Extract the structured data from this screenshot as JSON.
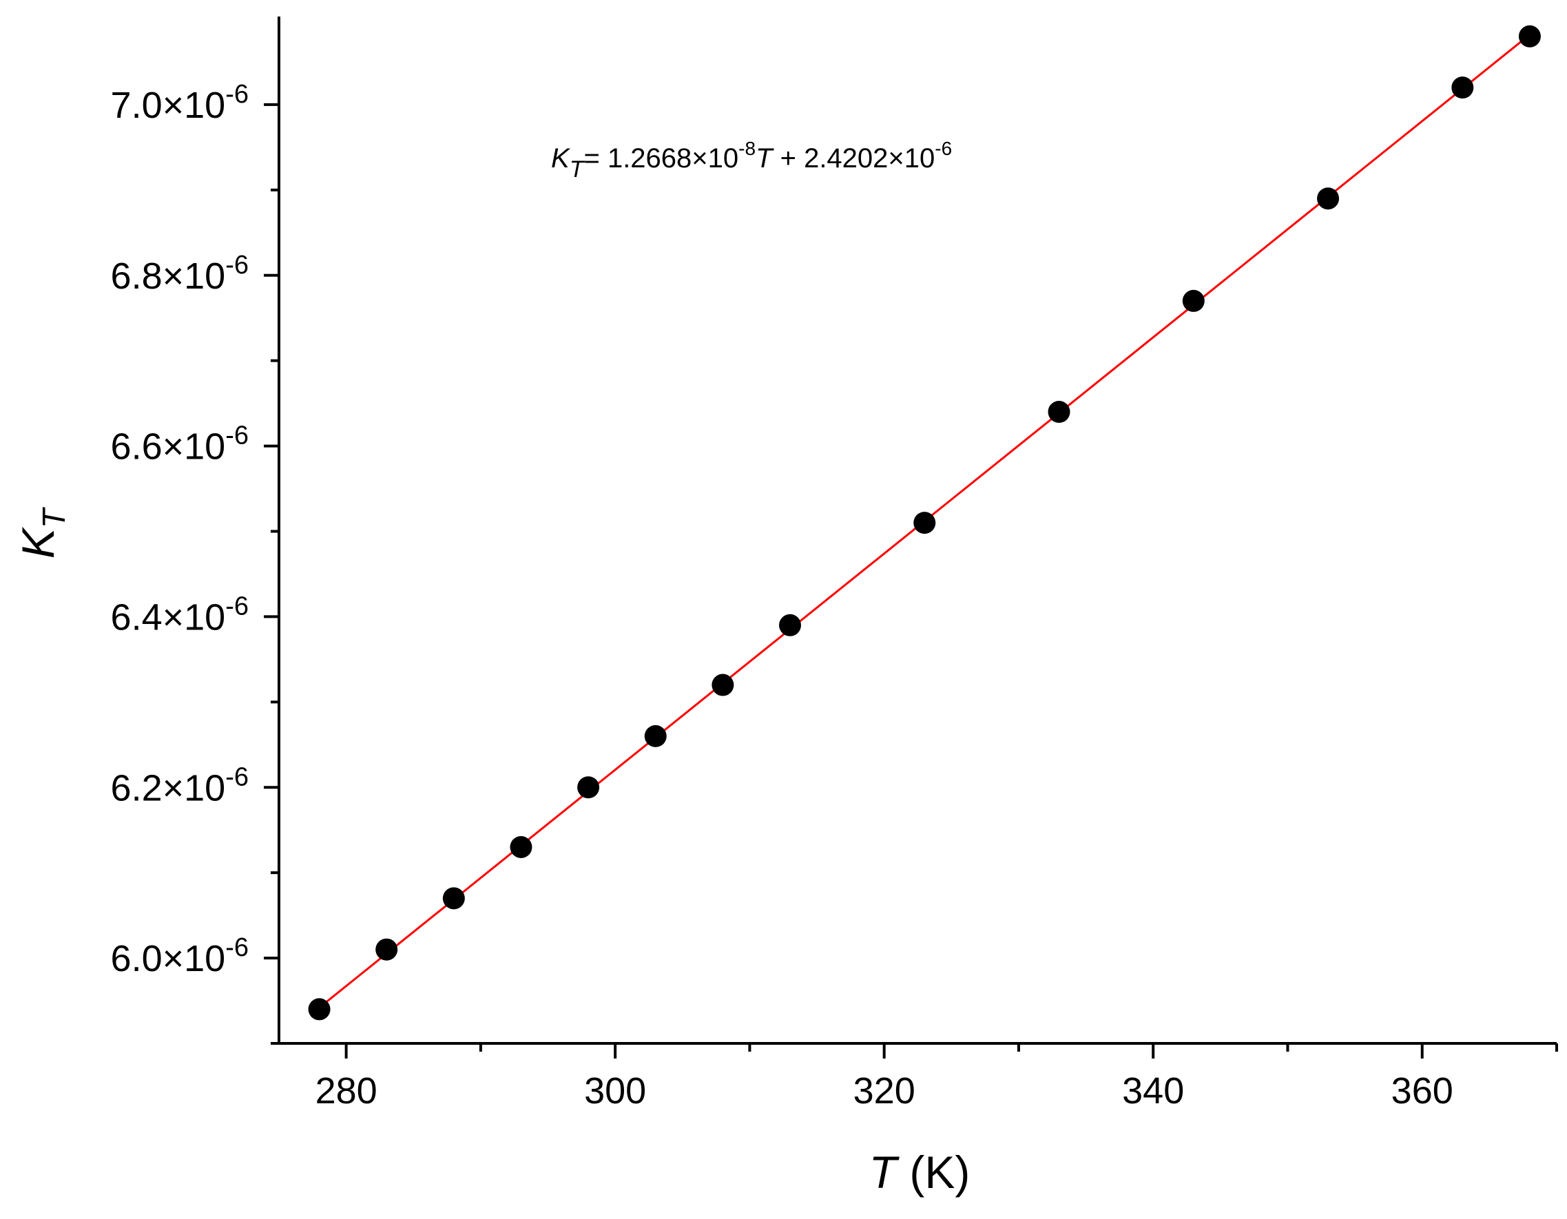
{
  "chart_data": {
    "type": "scatter",
    "title": "",
    "xlabel": {
      "var": "T",
      "unit": "(K)"
    },
    "ylabel": {
      "var": "K",
      "sub": "T"
    },
    "xlim": [
      275,
      370
    ],
    "ylim": [
      5.9e-06,
      7.1e-06
    ],
    "x_ticks": [
      {
        "value": 280,
        "label": "280"
      },
      {
        "value": 300,
        "label": "300"
      },
      {
        "value": 320,
        "label": "320"
      },
      {
        "value": 340,
        "label": "340"
      },
      {
        "value": 360,
        "label": "360"
      }
    ],
    "x_minor_ticks": [
      290,
      310,
      330,
      350,
      370
    ],
    "y_ticks": [
      {
        "value": 6e-06,
        "mant": "6.0×10",
        "exp": "-6"
      },
      {
        "value": 6.2e-06,
        "mant": "6.2×10",
        "exp": "-6"
      },
      {
        "value": 6.4e-06,
        "mant": "6.4×10",
        "exp": "-6"
      },
      {
        "value": 6.6e-06,
        "mant": "6.6×10",
        "exp": "-6"
      },
      {
        "value": 6.8e-06,
        "mant": "6.8×10",
        "exp": "-6"
      },
      {
        "value": 7e-06,
        "mant": "7.0×10",
        "exp": "-6"
      }
    ],
    "y_minor_ticks": [
      5.9e-06,
      6.1e-06,
      6.3e-06,
      6.5e-06,
      6.7e-06,
      6.9e-06
    ],
    "series": [
      {
        "x": [
          278,
          283,
          288,
          293,
          298,
          303,
          308,
          313,
          323,
          333,
          343,
          353,
          363,
          368
        ],
        "y": [
          5.94e-06,
          6.01e-06,
          6.07e-06,
          6.13e-06,
          6.2e-06,
          6.26e-06,
          6.32e-06,
          6.39e-06,
          6.51e-06,
          6.64e-06,
          6.77e-06,
          6.89e-06,
          7.02e-06,
          7.08e-06
        ],
        "marker_color": "#000000"
      }
    ],
    "fit_line": {
      "slope": 1.2668e-08,
      "intercept": 2.4202e-06,
      "x_range": [
        278,
        368
      ],
      "color": "#ff0000"
    },
    "annotation": {
      "var": "K",
      "sub": "T",
      "eq_a": "= 1.2668×10",
      "exp_a": "-8",
      "var2": "T",
      "eq_b": " + 2.4202×10",
      "exp_b": "-6"
    },
    "grid": false,
    "legend": "none"
  }
}
